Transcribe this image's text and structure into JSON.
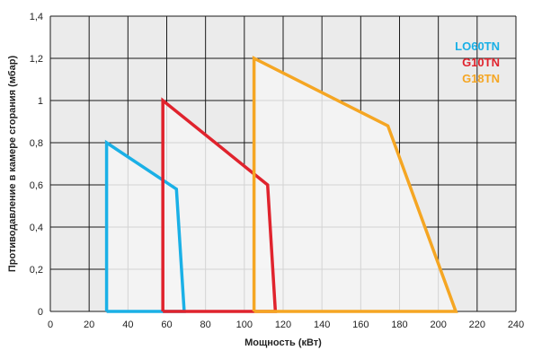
{
  "chart_data": {
    "type": "line",
    "title": "",
    "xlabel": "Мощность  (кВт)",
    "ylabel": "Противодавление в камере сгорания (мбар)",
    "xlim": [
      0,
      240
    ],
    "ylim": [
      0,
      1.4
    ],
    "x_ticks": [
      0,
      20,
      40,
      60,
      80,
      100,
      120,
      140,
      160,
      180,
      200,
      220,
      240
    ],
    "x_tick_labels": [
      "0",
      "20",
      "40",
      "60",
      "80",
      "100",
      "120",
      "140",
      "160",
      "180",
      "200",
      "220",
      "240"
    ],
    "y_ticks": [
      0,
      0.2,
      0.4,
      0.6,
      0.8,
      1,
      1.2,
      1.4
    ],
    "y_tick_labels": [
      "0",
      "0,2",
      "0,4",
      "0,6",
      "0,8",
      "1",
      "1,2",
      "1,4"
    ],
    "grid": true,
    "legend_position": "top-right",
    "series": [
      {
        "name": "LO60TN",
        "color": "#1ab0e6",
        "points": [
          [
            29,
            0
          ],
          [
            29,
            0.8
          ],
          [
            65,
            0.58
          ],
          [
            69,
            0
          ],
          [
            29,
            0
          ]
        ]
      },
      {
        "name": "G10TN",
        "color": "#e0232d",
        "points": [
          [
            58,
            0
          ],
          [
            58,
            1.0
          ],
          [
            112,
            0.6
          ],
          [
            116,
            0
          ],
          [
            58,
            0
          ]
        ]
      },
      {
        "name": "G18TN",
        "color": "#f5a623",
        "points": [
          [
            105,
            0
          ],
          [
            105,
            1.2
          ],
          [
            174,
            0.88
          ],
          [
            209,
            0
          ],
          [
            105,
            0
          ]
        ]
      }
    ],
    "colors": {
      "plot_background": "#ebebeb",
      "grid": "#1a1a1a",
      "fill": "#f5f5f5"
    }
  }
}
